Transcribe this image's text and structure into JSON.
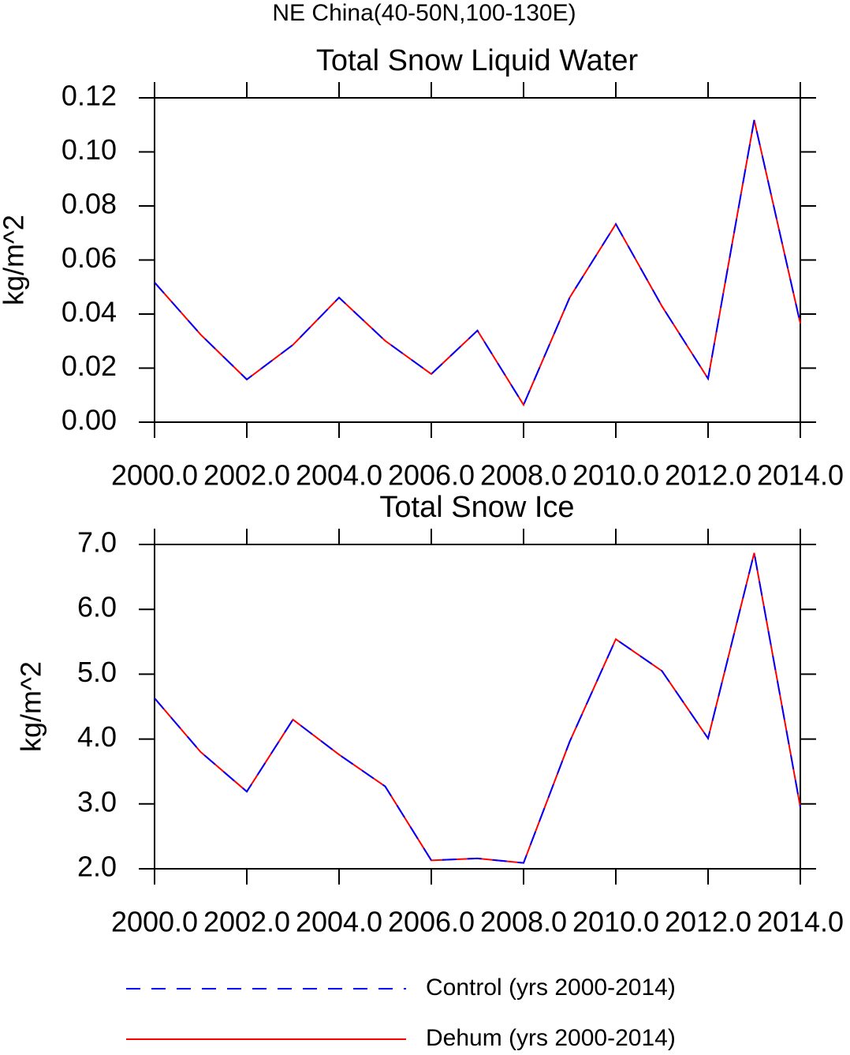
{
  "title": "NE China(40-50N,100-130E)",
  "chart_data": [
    {
      "type": "line",
      "title": "Total Snow Liquid Water",
      "ylabel": "kg/m^2",
      "x": [
        2000,
        2001,
        2002,
        2003,
        2004,
        2005,
        2006,
        2007,
        2008,
        2009,
        2010,
        2011,
        2012,
        2013,
        2014
      ],
      "series": [
        {
          "name": "Control (yrs 2000-2014)",
          "color": "#0000ff",
          "dash": "dashed",
          "values": [
            0.0517,
            0.0324,
            0.0158,
            0.0286,
            0.0461,
            0.0301,
            0.0178,
            0.0339,
            0.0064,
            0.0461,
            0.0733,
            0.0429,
            0.0161,
            0.1118,
            0.0365
          ]
        },
        {
          "name": "Dehum (yrs 2000-2014)",
          "color": "#ff0000",
          "dash": "solid",
          "values": [
            0.0517,
            0.0324,
            0.0158,
            0.0286,
            0.0461,
            0.0301,
            0.0178,
            0.0339,
            0.0064,
            0.0461,
            0.0733,
            0.0429,
            0.0161,
            0.1118,
            0.0365
          ]
        }
      ],
      "xlim": [
        2000,
        2014
      ],
      "xticks": [
        {
          "value": 2000,
          "label": "2000.0"
        },
        {
          "value": 2002,
          "label": "2002.0"
        },
        {
          "value": 2004,
          "label": "2004.0"
        },
        {
          "value": 2006,
          "label": "2006.0"
        },
        {
          "value": 2008,
          "label": "2008.0"
        },
        {
          "value": 2010,
          "label": "2010.0"
        },
        {
          "value": 2012,
          "label": "2012.0"
        },
        {
          "value": 2014,
          "label": "2014.0"
        }
      ],
      "ylim": [
        0,
        0.12
      ],
      "yticks": [
        {
          "value": 0,
          "label": "0.00"
        },
        0.02,
        0.04,
        0.06,
        0.08,
        {
          "value": 0.1,
          "label": "0.10"
        },
        0.12
      ]
    },
    {
      "type": "line",
      "title": "Total Snow Ice",
      "ylabel": "kg/m^2",
      "x": [
        2000,
        2001,
        2002,
        2003,
        2004,
        2005,
        2006,
        2007,
        2008,
        2009,
        2010,
        2011,
        2012,
        2013,
        2014
      ],
      "series": [
        {
          "name": "Control (yrs 2000-2014)",
          "color": "#0000ff",
          "dash": "dashed",
          "values": [
            4.63,
            3.8,
            3.19,
            4.3,
            3.76,
            3.27,
            2.13,
            2.16,
            2.09,
            3.96,
            5.54,
            5.05,
            4.01,
            6.87,
            2.95
          ]
        },
        {
          "name": "Dehum (yrs 2000-2014)",
          "color": "#ff0000",
          "dash": "solid",
          "values": [
            4.63,
            3.8,
            3.19,
            4.3,
            3.76,
            3.27,
            2.13,
            2.16,
            2.09,
            3.96,
            5.54,
            5.05,
            4.01,
            6.87,
            2.95
          ]
        }
      ],
      "xlim": [
        2000,
        2014
      ],
      "xticks": [
        {
          "value": 2000,
          "label": "2000.0"
        },
        {
          "value": 2002,
          "label": "2002.0"
        },
        {
          "value": 2004,
          "label": "2004.0"
        },
        {
          "value": 2006,
          "label": "2006.0"
        },
        {
          "value": 2008,
          "label": "2008.0"
        },
        {
          "value": 2010,
          "label": "2010.0"
        },
        {
          "value": 2012,
          "label": "2012.0"
        },
        {
          "value": 2014,
          "label": "2014.0"
        }
      ],
      "ylim": [
        2,
        7
      ],
      "yticks": [
        {
          "value": 2,
          "label": "2.0"
        },
        {
          "value": 3,
          "label": "3.0"
        },
        {
          "value": 4,
          "label": "4.0"
        },
        {
          "value": 5,
          "label": "5.0"
        },
        {
          "value": 6,
          "label": "6.0"
        },
        {
          "value": 7,
          "label": "7.0"
        }
      ]
    }
  ]
}
